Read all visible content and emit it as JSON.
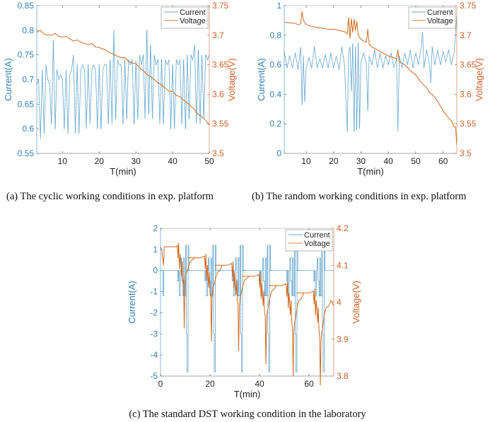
{
  "colors": {
    "current": "#3f8fc0",
    "voltage": "#d2691e",
    "axis_left": "#2f7fb5",
    "axis_right": "#d15f26"
  },
  "chart_data": [
    {
      "id": "a",
      "type": "line",
      "caption": "(a) The cyclic working conditions in exp. platform",
      "xlabel": "T(min)",
      "ylabel_left": "Current(A)",
      "ylabel_right": "Voltage(V)",
      "xlim": [
        3,
        50
      ],
      "ylim_left": [
        0.55,
        0.85
      ],
      "ylim_right": [
        3.5,
        3.75
      ],
      "xticks": [
        10,
        20,
        30,
        40,
        50
      ],
      "yticks_left": [
        "0.55",
        "0.6",
        "0.65",
        "0.7",
        "0.75",
        "0.8",
        "0.85"
      ],
      "yticks_right": [
        "3.5",
        "3.55",
        "3.6",
        "3.65",
        "3.7",
        "3.75"
      ],
      "legend": {
        "position": "top-right",
        "entries": [
          "Current",
          "Voltage"
        ]
      },
      "series": [
        {
          "name": "Current",
          "axis": "left",
          "x": [
            3,
            3.5,
            4,
            4.5,
            5,
            5.5,
            6,
            6.5,
            7,
            7.5,
            8,
            8.5,
            9,
            9.5,
            10,
            10.5,
            11,
            11.5,
            12,
            12.5,
            13,
            13.5,
            14,
            14.5,
            15,
            15.5,
            16,
            16.5,
            17,
            17.5,
            18,
            18.5,
            19,
            19.5,
            20,
            20.5,
            21,
            21.5,
            22,
            22.5,
            23,
            23.5,
            24,
            24.5,
            25,
            25.5,
            26,
            26.5,
            27,
            27.5,
            28,
            28.5,
            29,
            29.5,
            30,
            30.5,
            31,
            31.5,
            32,
            32.5,
            33,
            33.5,
            34,
            34.5,
            35,
            35.5,
            36,
            36.5,
            37,
            37.5,
            38,
            38.5,
            39,
            39.5,
            40,
            40.5,
            41,
            41.5,
            42,
            42.5,
            43,
            43.5,
            44,
            44.5,
            45,
            45.5,
            46,
            46.5,
            47,
            47.5,
            48,
            48.5,
            49,
            49.5,
            50
          ],
          "y": [
            0.69,
            0.7,
            0.58,
            0.72,
            0.59,
            0.73,
            0.7,
            0.69,
            0.61,
            0.78,
            0.6,
            0.72,
            0.7,
            0.71,
            0.7,
            0.6,
            0.72,
            0.59,
            0.71,
            0.72,
            0.75,
            0.59,
            0.73,
            0.59,
            0.72,
            0.73,
            0.72,
            0.6,
            0.73,
            0.61,
            0.72,
            0.73,
            0.72,
            0.6,
            0.73,
            0.6,
            0.72,
            0.73,
            0.73,
            0.61,
            0.74,
            0.61,
            0.8,
            0.62,
            0.74,
            0.73,
            0.73,
            0.61,
            0.74,
            0.62,
            0.74,
            0.73,
            0.74,
            0.61,
            0.74,
            0.62,
            0.75,
            0.73,
            0.75,
            0.62,
            0.8,
            0.63,
            0.77,
            0.62,
            0.75,
            0.73,
            0.74,
            0.61,
            0.74,
            0.61,
            0.74,
            0.73,
            0.74,
            0.6,
            0.73,
            0.6,
            0.74,
            0.73,
            0.74,
            0.61,
            0.74,
            0.6,
            0.75,
            0.62,
            0.75,
            0.74,
            0.77,
            0.61,
            0.76,
            0.61,
            0.75,
            0.62,
            0.75,
            0.74,
            0.75
          ]
        },
        {
          "name": "Voltage",
          "axis": "right",
          "x": [
            3,
            4,
            5,
            6,
            7,
            8,
            9,
            10,
            11,
            12,
            13,
            14,
            15,
            16,
            17,
            18,
            19,
            20,
            21,
            22,
            23,
            24,
            25,
            26,
            27,
            28,
            29,
            30,
            31,
            32,
            33,
            34,
            35,
            36,
            37,
            38,
            39,
            40,
            41,
            42,
            43,
            44,
            45,
            46,
            47,
            48,
            49,
            50
          ],
          "y": [
            3.705,
            3.708,
            3.702,
            3.7,
            3.7,
            3.703,
            3.698,
            3.697,
            3.698,
            3.694,
            3.69,
            3.692,
            3.688,
            3.686,
            3.684,
            3.686,
            3.68,
            3.679,
            3.677,
            3.674,
            3.67,
            3.668,
            3.664,
            3.662,
            3.662,
            3.656,
            3.653,
            3.652,
            3.645,
            3.64,
            3.634,
            3.63,
            3.625,
            3.62,
            3.615,
            3.611,
            3.605,
            3.605,
            3.598,
            3.596,
            3.59,
            3.585,
            3.58,
            3.574,
            3.566,
            3.562,
            3.556,
            3.548
          ]
        }
      ]
    },
    {
      "id": "b",
      "type": "line",
      "caption": "(b) The random working conditions in exp. platform",
      "xlabel": "T(min)",
      "ylabel_left": "Current(A)",
      "ylabel_right": "Voltage(V)",
      "xlim": [
        2,
        65
      ],
      "ylim_left": [
        0,
        1
      ],
      "ylim_right": [
        3.5,
        3.75
      ],
      "xticks": [
        10,
        20,
        30,
        40,
        50,
        60
      ],
      "yticks_left": [
        "0",
        "0.2",
        "0.4",
        "0.6",
        "0.8",
        "1"
      ],
      "yticks_right": [
        "3.5",
        "3.55",
        "3.6",
        "3.65",
        "3.7",
        "3.75"
      ],
      "legend": {
        "position": "top-right",
        "entries": [
          "Current",
          "Voltage"
        ]
      },
      "series": [
        {
          "name": "Current",
          "axis": "left",
          "x": [
            2,
            3,
            4,
            5,
            6,
            7,
            8,
            8.5,
            9,
            9.5,
            10,
            11,
            12,
            13,
            14,
            15,
            16,
            17,
            18,
            19,
            20,
            21,
            22,
            23,
            24,
            25,
            25.5,
            26,
            26.5,
            27,
            27.5,
            28,
            28.5,
            29,
            29.5,
            30,
            31,
            32,
            32.5,
            33,
            34,
            35,
            36,
            37,
            38,
            39,
            40,
            41,
            42,
            43,
            43.5,
            44,
            45,
            46,
            47,
            48,
            49,
            50,
            51,
            52,
            52.5,
            53,
            54,
            55,
            55.5,
            56,
            57,
            58,
            59,
            60,
            61,
            62,
            63,
            64,
            65
          ],
          "y": [
            0.69,
            0.58,
            0.66,
            0.58,
            0.68,
            0.57,
            0.72,
            0.33,
            0.66,
            0.35,
            0.58,
            0.65,
            0.58,
            0.72,
            0.58,
            0.64,
            0.58,
            0.67,
            0.58,
            0.68,
            0.58,
            0.66,
            0.57,
            0.72,
            0.6,
            0.15,
            0.68,
            0.72,
            0.42,
            0.74,
            0.15,
            0.72,
            0.16,
            0.75,
            0.17,
            0.62,
            0.68,
            0.6,
            0.29,
            0.66,
            0.6,
            0.7,
            0.58,
            0.68,
            0.58,
            0.66,
            0.6,
            0.68,
            0.58,
            0.64,
            0.15,
            0.66,
            0.58,
            0.68,
            0.6,
            0.7,
            0.58,
            0.68,
            0.6,
            0.72,
            0.82,
            0.58,
            0.7,
            0.6,
            0.48,
            0.72,
            0.6,
            0.7,
            0.6,
            0.69,
            0.62,
            0.7,
            0.6,
            0.68,
            0.93
          ]
        },
        {
          "name": "Voltage",
          "axis": "right",
          "x": [
            2,
            4,
            6,
            7,
            8,
            8.5,
            9,
            10,
            12,
            14,
            16,
            18,
            20,
            22,
            24,
            25,
            25.5,
            26,
            26.5,
            27,
            27.5,
            28,
            28.5,
            29,
            30,
            31,
            32,
            32.5,
            33,
            34,
            36,
            38,
            40,
            42,
            43,
            43.5,
            44,
            46,
            48,
            50,
            52,
            54,
            55,
            56,
            58,
            60,
            62,
            63,
            64,
            64.5,
            65
          ],
          "y": [
            3.722,
            3.721,
            3.72,
            3.718,
            3.719,
            3.74,
            3.725,
            3.718,
            3.715,
            3.713,
            3.712,
            3.71,
            3.71,
            3.708,
            3.706,
            3.702,
            3.73,
            3.695,
            3.728,
            3.705,
            3.727,
            3.708,
            3.723,
            3.7,
            3.693,
            3.69,
            3.688,
            3.71,
            3.685,
            3.68,
            3.675,
            3.67,
            3.665,
            3.662,
            3.66,
            3.675,
            3.655,
            3.65,
            3.64,
            3.633,
            3.62,
            3.611,
            3.603,
            3.6,
            3.588,
            3.572,
            3.56,
            3.555,
            3.545,
            3.545,
            3.515
          ]
        }
      ]
    },
    {
      "id": "c",
      "type": "line",
      "caption": "(c) The standard DST working condition in the laboratory",
      "xlabel": "T(min)",
      "ylabel_left": "Current(A)",
      "ylabel_right": "Voltage(V)",
      "xlim": [
        0,
        70
      ],
      "ylim_left": [
        -5,
        2
      ],
      "ylim_right": [
        3.8,
        4.2
      ],
      "xticks": [
        0,
        20,
        40,
        60
      ],
      "yticks_left": [
        "-5",
        "-4",
        "-3",
        "-2",
        "-1",
        "0",
        "1",
        "2"
      ],
      "yticks_right": [
        "3.8",
        "3.9",
        "4",
        "4.1",
        "4.2"
      ],
      "legend": {
        "position": "top-right",
        "entries": [
          "Current",
          "Voltage"
        ]
      },
      "dst_cycle": {
        "cycle_starts_min": [
          0,
          11,
          22,
          33,
          44,
          55
        ],
        "current_pulses_A": [
          0,
          -0.5,
          0,
          -1.2,
          0,
          0.6,
          -0.5,
          -1.2,
          0.6,
          -1.2,
          1.2,
          -3.0,
          -4.8,
          1.2,
          0
        ],
        "rest_voltage_V": [
          4.15,
          4.12,
          4.1,
          4.07,
          4.045,
          4.025
        ]
      },
      "series": [
        {
          "name": "Current",
          "axis": "left",
          "x": [],
          "y": []
        },
        {
          "name": "Voltage",
          "axis": "right",
          "x": [],
          "y": []
        }
      ]
    }
  ]
}
